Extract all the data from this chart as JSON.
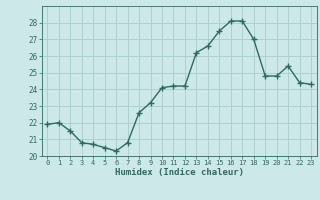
{
  "x": [
    0,
    1,
    2,
    3,
    4,
    5,
    6,
    7,
    8,
    9,
    10,
    11,
    12,
    13,
    14,
    15,
    16,
    17,
    18,
    19,
    20,
    21,
    22,
    23
  ],
  "y": [
    21.9,
    22.0,
    21.5,
    20.8,
    20.7,
    20.5,
    20.3,
    20.8,
    22.6,
    23.2,
    24.1,
    24.2,
    24.2,
    26.2,
    26.6,
    27.5,
    28.1,
    28.1,
    27.0,
    24.8,
    24.8,
    25.4,
    24.4,
    24.3
  ],
  "xlabel": "Humidex (Indice chaleur)",
  "ylim": [
    20,
    29
  ],
  "xlim": [
    -0.5,
    23.5
  ],
  "yticks": [
    20,
    21,
    22,
    23,
    24,
    25,
    26,
    27,
    28
  ],
  "xticks": [
    0,
    1,
    2,
    3,
    4,
    5,
    6,
    7,
    8,
    9,
    10,
    11,
    12,
    13,
    14,
    15,
    16,
    17,
    18,
    19,
    20,
    21,
    22,
    23
  ],
  "line_color": "#2e6b5e",
  "bg_color": "#cce8e8",
  "grid_color": "#aacccc",
  "label_color": "#2e6b5e",
  "tick_color": "#2e6b5e"
}
